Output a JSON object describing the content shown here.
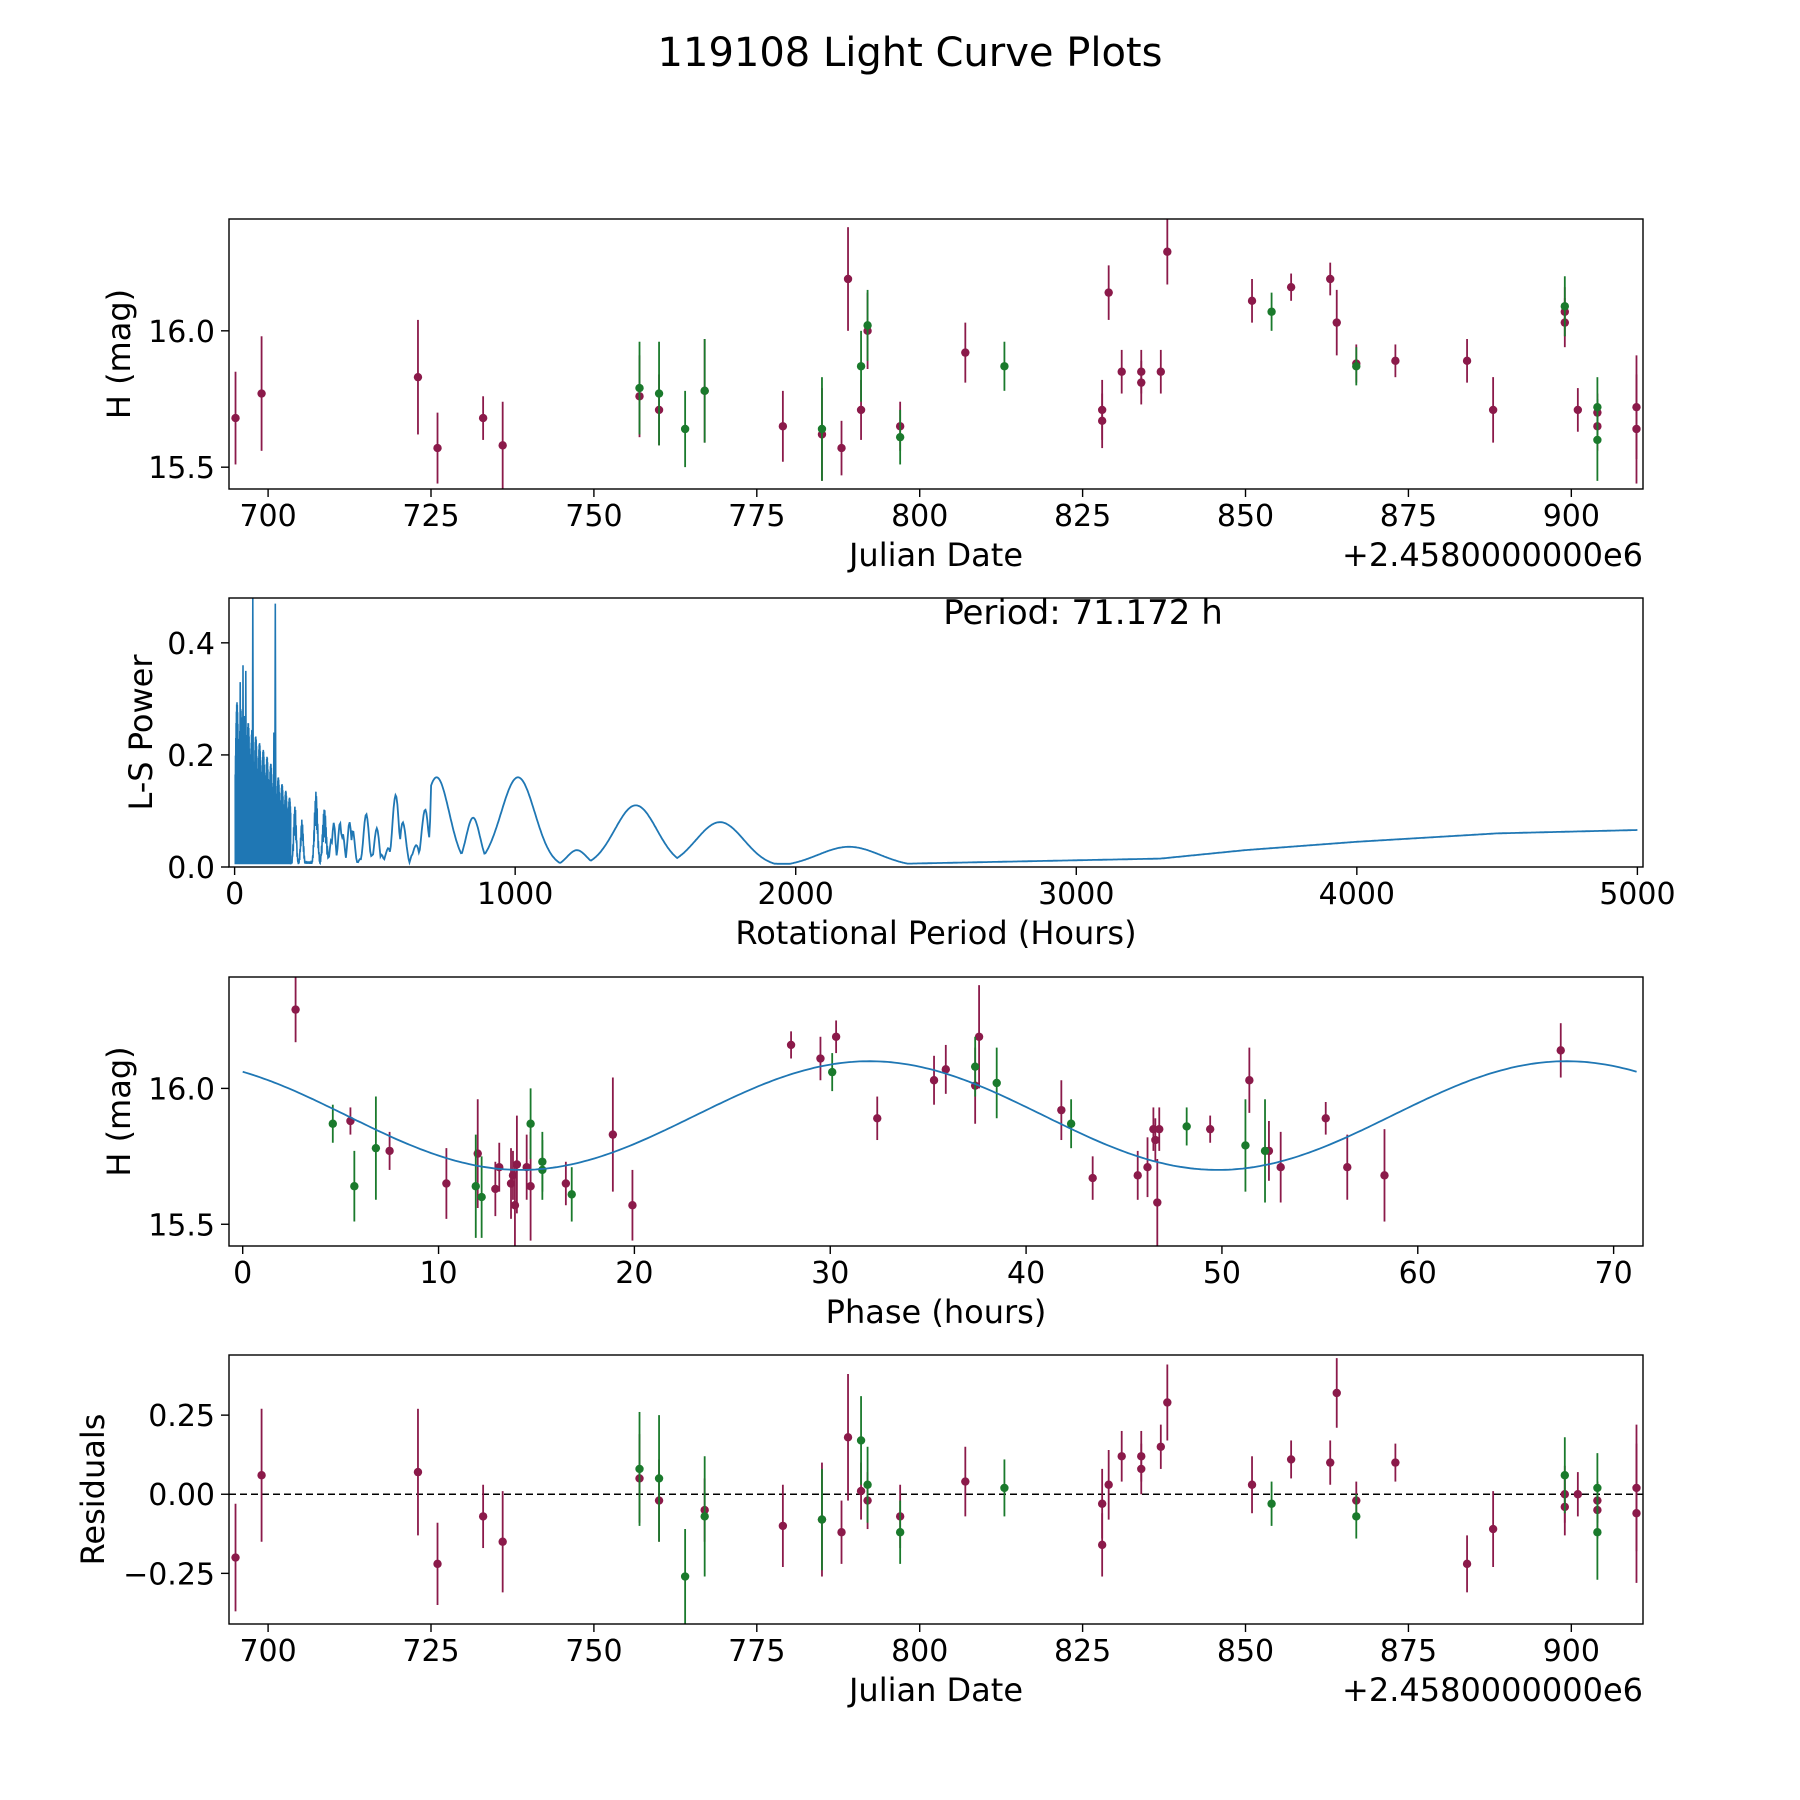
{
  "figure_title": "119108 Light Curve Plots",
  "colors": {
    "maroon": "#8b1a4a",
    "green": "#1a7a2c",
    "line": "#1f77b4",
    "axis": "#000000"
  },
  "chart_data": [
    {
      "id": "lightcurve",
      "type": "scatter",
      "title": "",
      "xlabel": "Julian Date",
      "ylabel": "H (mag)",
      "offset_label": "+2.4580000000e6",
      "xlim": [
        694,
        911
      ],
      "ylim": [
        15.42,
        16.41
      ],
      "xticks": [
        700,
        725,
        750,
        775,
        800,
        825,
        850,
        875,
        900
      ],
      "yticks": [
        15.5,
        16.0
      ],
      "ytick_labels": [
        "15.5",
        "16.0"
      ],
      "series": [
        {
          "name": "maroon",
          "color": "#8b1a4a",
          "points": [
            [
              695,
              15.68,
              0.17
            ],
            [
              699,
              15.77,
              0.21
            ],
            [
              723,
              15.83,
              0.21
            ],
            [
              726,
              15.57,
              0.13
            ],
            [
              733,
              15.68,
              0.08
            ],
            [
              736,
              15.58,
              0.16
            ],
            [
              757,
              15.76,
              0.15
            ],
            [
              760,
              15.71,
              0.13
            ],
            [
              767,
              15.78,
              0.19
            ],
            [
              779,
              15.65,
              0.13
            ],
            [
              785,
              15.62,
              0.17
            ],
            [
              788,
              15.57,
              0.1
            ],
            [
              789,
              16.19,
              0.19
            ],
            [
              791,
              15.71,
              0.11
            ],
            [
              792,
              16.0,
              0.14
            ],
            [
              797,
              15.65,
              0.09
            ],
            [
              807,
              15.92,
              0.11
            ],
            [
              828,
              15.71,
              0.11
            ],
            [
              828,
              15.67,
              0.1
            ],
            [
              829,
              16.14,
              0.1
            ],
            [
              831,
              15.85,
              0.08
            ],
            [
              834,
              15.85,
              0.08
            ],
            [
              834,
              15.81,
              0.08
            ],
            [
              837,
              15.85,
              0.08
            ],
            [
              838,
              16.29,
              0.12
            ],
            [
              851,
              16.11,
              0.08
            ],
            [
              857,
              16.16,
              0.05
            ],
            [
              863,
              16.19,
              0.06
            ],
            [
              864,
              16.03,
              0.12
            ],
            [
              867,
              15.88,
              0.07
            ],
            [
              873,
              15.89,
              0.06
            ],
            [
              884,
              15.89,
              0.08
            ],
            [
              888,
              15.71,
              0.12
            ],
            [
              899,
              16.03,
              0.09
            ],
            [
              899,
              16.07,
              0.09
            ],
            [
              901,
              15.71,
              0.08
            ],
            [
              904,
              15.65,
              0.09
            ],
            [
              904,
              15.7,
              0.07
            ],
            [
              910,
              15.72,
              0.19
            ],
            [
              910,
              15.64,
              0.2
            ]
          ]
        },
        {
          "name": "green",
          "color": "#1a7a2c",
          "points": [
            [
              757,
              15.79,
              0.17
            ],
            [
              760,
              15.77,
              0.19
            ],
            [
              764,
              15.64,
              0.14
            ],
            [
              767,
              15.78,
              0.19
            ],
            [
              785,
              15.64,
              0.19
            ],
            [
              791,
              15.87,
              0.13
            ],
            [
              792,
              16.02,
              0.13
            ],
            [
              797,
              15.61,
              0.1
            ],
            [
              813,
              15.87,
              0.09
            ],
            [
              854,
              16.07,
              0.07
            ],
            [
              867,
              15.87,
              0.07
            ],
            [
              899,
              16.09,
              0.11
            ],
            [
              904,
              15.72,
              0.11
            ],
            [
              904,
              15.6,
              0.15
            ]
          ]
        }
      ]
    },
    {
      "id": "periodogram",
      "type": "line",
      "title": "",
      "xlabel": "Rotational Period (Hours)",
      "ylabel": "L-S Power",
      "annotation": "Period: 71.172 h",
      "xlim": [
        -20,
        5020
      ],
      "ylim": [
        0,
        0.48
      ],
      "xticks": [
        0,
        1000,
        2000,
        3000,
        4000,
        5000
      ],
      "yticks": [
        0.0,
        0.2,
        0.4
      ],
      "ytick_labels": [
        "0.0",
        "0.2",
        "0.4"
      ],
      "peaks": [
        [
          720,
          0.16,
          45
        ],
        [
          1010,
          0.16,
          60
        ],
        [
          1430,
          0.11,
          75
        ],
        [
          1730,
          0.08,
          85
        ],
        [
          2190,
          0.036,
          110
        ],
        [
          1220,
          0.03,
          35
        ],
        [
          580,
          0.135,
          22
        ],
        [
          850,
          0.088,
          25
        ],
        [
          470,
          0.095,
          14
        ],
        [
          510,
          0.075,
          12
        ],
        [
          415,
          0.132,
          9
        ],
        [
          380,
          0.132,
          8
        ],
        [
          350,
          0.128,
          7
        ],
        [
          320,
          0.105,
          7
        ],
        [
          290,
          0.135,
          6
        ],
        [
          240,
          0.085,
          5
        ],
        [
          215,
          0.11,
          5
        ],
        [
          630,
          0.028,
          10
        ]
      ],
      "background": [
        [
          0,
          0.01
        ],
        [
          2300,
          0.005
        ],
        [
          2600,
          0.008
        ],
        [
          3000,
          0.012
        ],
        [
          3300,
          0.015
        ],
        [
          3600,
          0.03
        ],
        [
          4000,
          0.045
        ],
        [
          4500,
          0.06
        ],
        [
          5000,
          0.066
        ]
      ],
      "dense_region": {
        "x_start": 2,
        "x_end": 200,
        "amplitude_low": 0.3,
        "amplitude_high": 0.12
      },
      "spikes": [
        [
          65,
          0.48
        ],
        [
          145,
          0.47
        ],
        [
          30,
          0.36
        ],
        [
          20,
          0.33
        ],
        [
          140,
          0.24
        ],
        [
          40,
          0.35
        ]
      ]
    },
    {
      "id": "phasefold",
      "type": "scatter",
      "title": "",
      "xlabel": "Phase (hours)",
      "ylabel": "H (mag)",
      "xlim": [
        -0.7,
        71.5
      ],
      "ylim": [
        15.42,
        16.41
      ],
      "xticks": [
        0,
        10,
        20,
        30,
        40,
        50,
        60,
        70
      ],
      "yticks": [
        15.5,
        16.0
      ],
      "ytick_labels": [
        "15.5",
        "16.0"
      ],
      "fit": {
        "mean": 15.9,
        "amplitude": 0.2,
        "period": 35.586,
        "peak_phase": 32.0
      },
      "series": [
        {
          "name": "maroon",
          "color": "#8b1a4a",
          "points": [
            [
              2.7,
              16.29,
              0.12
            ],
            [
              5.5,
              15.88,
              0.05
            ],
            [
              7.5,
              15.77,
              0.07
            ],
            [
              10.4,
              15.65,
              0.13
            ],
            [
              12.0,
              15.76,
              0.2
            ],
            [
              12.9,
              15.63,
              0.1
            ],
            [
              13.1,
              15.71,
              0.09
            ],
            [
              13.7,
              15.65,
              0.13
            ],
            [
              13.8,
              15.68,
              0.09
            ],
            [
              13.9,
              15.57,
              0.16
            ],
            [
              14.0,
              15.72,
              0.18
            ],
            [
              14.5,
              15.71,
              0.12
            ],
            [
              14.7,
              15.64,
              0.2
            ],
            [
              16.5,
              15.65,
              0.08
            ],
            [
              18.9,
              15.83,
              0.21
            ],
            [
              19.9,
              15.57,
              0.13
            ],
            [
              28.0,
              16.16,
              0.05
            ],
            [
              29.5,
              16.11,
              0.08
            ],
            [
              30.3,
              16.19,
              0.06
            ],
            [
              32.4,
              15.89,
              0.08
            ],
            [
              35.3,
              16.03,
              0.09
            ],
            [
              35.9,
              16.07,
              0.09
            ],
            [
              37.4,
              16.01,
              0.14
            ],
            [
              37.6,
              16.19,
              0.19
            ],
            [
              41.8,
              15.92,
              0.11
            ],
            [
              43.4,
              15.67,
              0.08
            ],
            [
              45.7,
              15.68,
              0.09
            ],
            [
              46.2,
              15.71,
              0.11
            ],
            [
              46.5,
              15.85,
              0.08
            ],
            [
              46.6,
              15.81,
              0.08
            ],
            [
              46.7,
              15.58,
              0.16
            ],
            [
              46.8,
              15.85,
              0.08
            ],
            [
              49.4,
              15.85,
              0.05
            ],
            [
              51.4,
              16.03,
              0.12
            ],
            [
              52.4,
              15.77,
              0.11
            ],
            [
              53.0,
              15.71,
              0.13
            ],
            [
              55.3,
              15.89,
              0.06
            ],
            [
              56.4,
              15.71,
              0.12
            ],
            [
              58.3,
              15.68,
              0.17
            ],
            [
              67.3,
              16.14,
              0.1
            ]
          ]
        },
        {
          "name": "green",
          "color": "#1a7a2c",
          "points": [
            [
              4.6,
              15.87,
              0.07
            ],
            [
              5.7,
              15.64,
              0.13
            ],
            [
              6.8,
              15.78,
              0.19
            ],
            [
              12.2,
              15.6,
              0.15
            ],
            [
              11.9,
              15.64,
              0.19
            ],
            [
              14.7,
              15.87,
              0.13
            ],
            [
              15.3,
              15.7,
              0.11
            ],
            [
              15.3,
              15.73,
              0.11
            ],
            [
              16.8,
              15.61,
              0.1
            ],
            [
              30.1,
              16.06,
              0.07
            ],
            [
              37.4,
              16.08,
              0.11
            ],
            [
              38.5,
              16.02,
              0.13
            ],
            [
              42.3,
              15.87,
              0.09
            ],
            [
              48.2,
              15.86,
              0.07
            ],
            [
              51.2,
              15.79,
              0.17
            ],
            [
              52.2,
              15.77,
              0.19
            ]
          ]
        }
      ]
    },
    {
      "id": "residuals",
      "type": "scatter",
      "title": "",
      "xlabel": "Julian Date",
      "ylabel": "Residuals",
      "offset_label": "+2.4580000000e6",
      "xlim": [
        694,
        911
      ],
      "ylim": [
        -0.41,
        0.44
      ],
      "xticks": [
        700,
        725,
        750,
        775,
        800,
        825,
        850,
        875,
        900
      ],
      "yticks": [
        -0.25,
        0.0,
        0.25
      ],
      "ytick_labels": [
        "−0.25",
        "0.00",
        "0.25"
      ],
      "baseline": 0.0,
      "series": [
        {
          "name": "maroon",
          "color": "#8b1a4a",
          "points": [
            [
              695,
              -0.2,
              0.17
            ],
            [
              699,
              0.06,
              0.21
            ],
            [
              723,
              0.07,
              0.2
            ],
            [
              726,
              -0.22,
              0.13
            ],
            [
              733,
              -0.07,
              0.1
            ],
            [
              736,
              -0.15,
              0.16
            ],
            [
              757,
              0.05,
              0.14
            ],
            [
              760,
              -0.02,
              0.13
            ],
            [
              767,
              -0.05,
              0.1
            ],
            [
              779,
              -0.1,
              0.13
            ],
            [
              785,
              -0.08,
              0.18
            ],
            [
              788,
              -0.12,
              0.1
            ],
            [
              789,
              0.18,
              0.2
            ],
            [
              791,
              0.01,
              0.09
            ],
            [
              792,
              -0.02,
              0.09
            ],
            [
              797,
              -0.07,
              0.1
            ],
            [
              807,
              0.04,
              0.11
            ],
            [
              828,
              -0.03,
              0.11
            ],
            [
              828,
              -0.16,
              0.1
            ],
            [
              829,
              0.03,
              0.11
            ],
            [
              831,
              0.12,
              0.08
            ],
            [
              834,
              0.12,
              0.08
            ],
            [
              834,
              0.08,
              0.08
            ],
            [
              837,
              0.15,
              0.07
            ],
            [
              838,
              0.29,
              0.12
            ],
            [
              851,
              0.03,
              0.09
            ],
            [
              857,
              0.11,
              0.06
            ],
            [
              863,
              0.1,
              0.07
            ],
            [
              864,
              0.32,
              0.11
            ],
            [
              867,
              -0.02,
              0.06
            ],
            [
              873,
              0.1,
              0.06
            ],
            [
              884,
              -0.22,
              0.09
            ],
            [
              888,
              -0.11,
              0.12
            ],
            [
              899,
              0.0,
              0.09
            ],
            [
              899,
              -0.04,
              0.09
            ],
            [
              901,
              0.0,
              0.07
            ],
            [
              904,
              -0.02,
              0.06
            ],
            [
              904,
              -0.05,
              0.09
            ],
            [
              910,
              0.02,
              0.2
            ],
            [
              910,
              -0.06,
              0.22
            ]
          ]
        },
        {
          "name": "green",
          "color": "#1a7a2c",
          "points": [
            [
              757,
              0.08,
              0.18
            ],
            [
              760,
              0.05,
              0.2
            ],
            [
              764,
              -0.26,
              0.15
            ],
            [
              767,
              -0.07,
              0.19
            ],
            [
              785,
              -0.08,
              0.16
            ],
            [
              791,
              0.17,
              0.14
            ],
            [
              792,
              0.03,
              0.12
            ],
            [
              797,
              -0.12,
              0.1
            ],
            [
              813,
              0.02,
              0.09
            ],
            [
              854,
              -0.03,
              0.07
            ],
            [
              867,
              -0.07,
              0.07
            ],
            [
              899,
              0.06,
              0.12
            ],
            [
              904,
              0.02,
              0.11
            ],
            [
              904,
              -0.12,
              0.15
            ]
          ]
        }
      ]
    }
  ]
}
